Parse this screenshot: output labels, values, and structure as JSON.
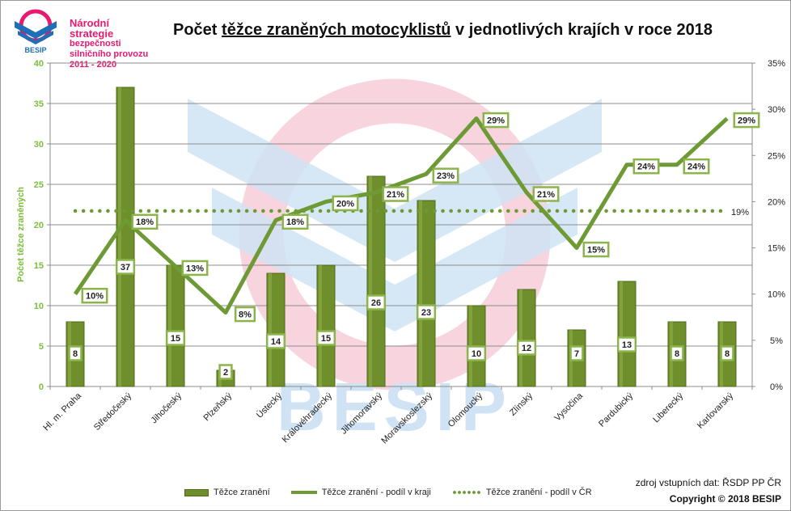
{
  "logo": {
    "line1": "Národní strategie",
    "line2": "bezpečnosti",
    "line3": "silničního provozu",
    "line4": "2011 - 2020",
    "brand": "BESIP"
  },
  "title": {
    "before": "Počet ",
    "underlined": "těžce zraněných motocyklistů",
    "after": " v jednotlivých krajích v roce 2018"
  },
  "watermark": "BESIP",
  "source": "zdroj vstupních dat: ŘSDP PP ČR",
  "copyright": "Copyright © 2018  BESIP",
  "colors": {
    "bar": "#6e8f2c",
    "bar_dark": "#4f6b1a",
    "line": "#6e9a35",
    "label_border": "#8bb54a",
    "axis_label": "#7cbf3a",
    "logo_pink": "#e8196e"
  },
  "chart_data": {
    "type": "bar",
    "title": "Počet těžce zraněných motocyklistů v jednotlivých krajích v roce 2018",
    "categories": [
      "Hl. m. Praha",
      "Středočeský",
      "Jihočeský",
      "Plzeňský",
      "Ústecký",
      "Královéhradecký",
      "Jihomoravský",
      "Moravskoslezský",
      "Olomoucký",
      "Zlínský",
      "Vysočina",
      "Pardubický",
      "Liberecký",
      "Karlovarský"
    ],
    "series": [
      {
        "name": "Těžce zranění",
        "kind": "bar",
        "axis": "left",
        "values": [
          8,
          37,
          15,
          2,
          14,
          15,
          26,
          23,
          10,
          12,
          7,
          13,
          8,
          8
        ],
        "labels": [
          "8",
          "37",
          "15",
          "2",
          "14",
          "15",
          "26",
          "23",
          "10",
          "12",
          "7",
          "13",
          "8",
          "8"
        ]
      },
      {
        "name": "Těžce zranění - podíl v kraji",
        "kind": "line",
        "axis": "right",
        "values": [
          10,
          18,
          13,
          8,
          18,
          20,
          21,
          23,
          29,
          21,
          15,
          24,
          24,
          29
        ],
        "labels": [
          "10%",
          "18%",
          "13%",
          "8%",
          "18%",
          "20%",
          "21%",
          "23%",
          "29%",
          "21%",
          "15%",
          "24%",
          "24%",
          "29%"
        ]
      },
      {
        "name": "Těžce zranění - podíl v ČR",
        "kind": "dotted-line",
        "axis": "right",
        "value": 19,
        "label": "19%"
      }
    ],
    "ylabel": "Počet těžce zraněných",
    "xlabel": "",
    "ylim": [
      0,
      40
    ],
    "yticks": [
      "0",
      "5",
      "10",
      "15",
      "20",
      "25",
      "30",
      "35",
      "40"
    ],
    "y2lim": [
      0,
      35
    ],
    "y2ticks": [
      "0%",
      "5%",
      "10%",
      "15%",
      "20%",
      "25%",
      "30%",
      "35%"
    ],
    "grid": true,
    "legend_position": "bottom"
  }
}
